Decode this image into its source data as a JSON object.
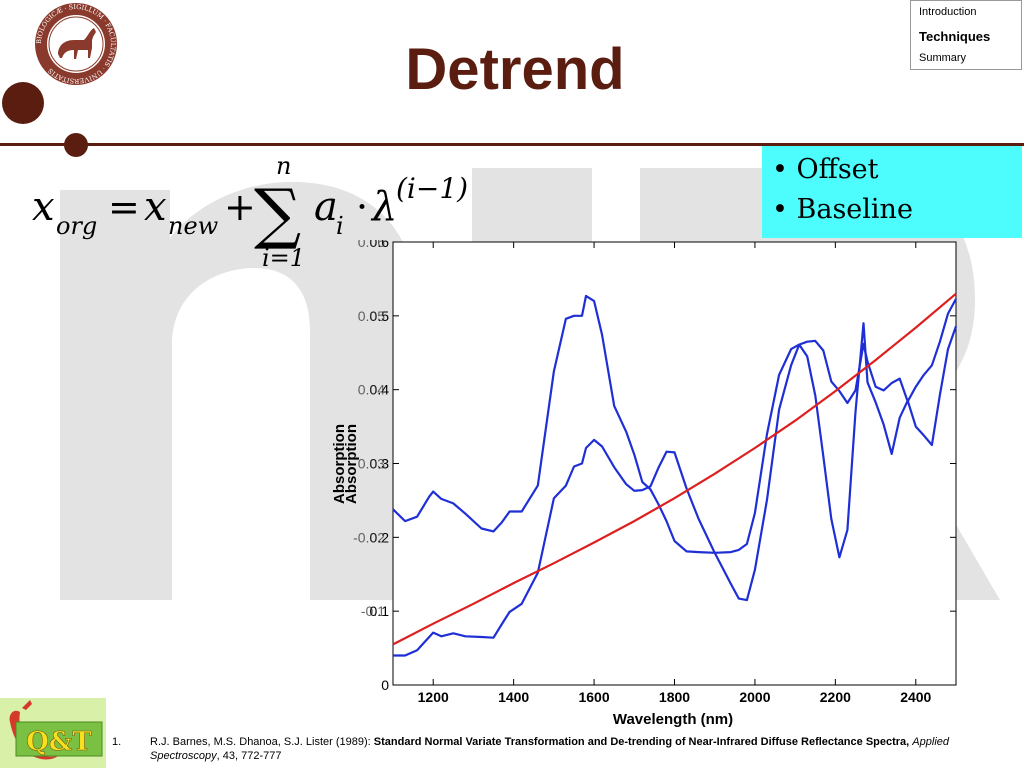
{
  "slide": {
    "title": "Detrend",
    "watermark": "nIR"
  },
  "seal": {
    "ring_text": "BIOLOGICÆ · SIGILLUM · FACULTATIS · UNIVERSITATIS"
  },
  "nav": {
    "items": [
      {
        "label": "Introduction",
        "active": false
      },
      {
        "label": "Techniques",
        "active": true
      },
      {
        "label": "Summary",
        "active": false
      }
    ]
  },
  "formula": {
    "lhs_var": "x",
    "lhs_sub": "org",
    "eq": "=",
    "rhs_var": "x",
    "rhs_sub": "new",
    "plus": "+",
    "sum_symbol": "∑",
    "sum_upper": "n",
    "sum_lower": "i=1",
    "coef": "a",
    "coef_sub": "i",
    "dot": "·",
    "lambda": "λ",
    "exponent": "(i−1)"
  },
  "bullets": {
    "items": [
      "• Offset",
      "• Baseline"
    ]
  },
  "chart_data": {
    "type": "line",
    "xlabel": "Wavelength (nm)",
    "ylabel": "Absorption",
    "xlim": [
      1100,
      2500
    ],
    "ylim": [
      0,
      0.6
    ],
    "xticks": [
      1200,
      1400,
      1600,
      1800,
      2000,
      2200,
      2400
    ],
    "yticks_main": [
      "0",
      "0.1",
      "0.2",
      "0.3",
      "0.4",
      "0.5",
      "0.6"
    ],
    "yticks_overlay": [
      "-0.1",
      "-0.02",
      "0.03",
      "0.04",
      "0.05",
      "0.06"
    ],
    "yticks_overlay_values": [
      -0.1,
      -0.02,
      0.03,
      0.04,
      0.05,
      0.06
    ],
    "series": [
      {
        "color": "#1f2fd6",
        "x": [
          1100,
          1130,
          1160,
          1190,
          1200,
          1220,
          1250,
          1280,
          1320,
          1350,
          1370,
          1390,
          1420,
          1460,
          1500,
          1530,
          1550,
          1570,
          1580,
          1600,
          1620,
          1650,
          1680,
          1700,
          1720,
          1740,
          1760,
          1780,
          1800,
          1830,
          1860,
          1900,
          1940,
          1960,
          1980,
          2000,
          2030,
          2060,
          2090,
          2110,
          2130,
          2150,
          2170,
          2190,
          2210,
          2230,
          2250,
          2270,
          2280,
          2300,
          2320,
          2340,
          2360,
          2380,
          2400,
          2420,
          2440,
          2460,
          2480,
          2500
        ],
        "y": [
          0.238,
          0.222,
          0.228,
          0.255,
          0.262,
          0.252,
          0.246,
          0.232,
          0.212,
          0.208,
          0.22,
          0.235,
          0.235,
          0.27,
          0.425,
          0.496,
          0.5,
          0.5,
          0.527,
          0.52,
          0.474,
          0.378,
          0.343,
          0.312,
          0.275,
          0.265,
          0.245,
          0.222,
          0.195,
          0.181,
          0.18,
          0.179,
          0.18,
          0.183,
          0.191,
          0.233,
          0.34,
          0.42,
          0.455,
          0.461,
          0.445,
          0.392,
          0.31,
          0.225,
          0.173,
          0.21,
          0.37,
          0.49,
          0.41,
          0.383,
          0.353,
          0.313,
          0.362,
          0.385,
          0.35,
          0.338,
          0.325,
          0.393,
          0.455,
          0.486
        ]
      },
      {
        "color": "#1f2fd6",
        "x": [
          1100,
          1130,
          1160,
          1190,
          1200,
          1220,
          1250,
          1280,
          1320,
          1350,
          1370,
          1390,
          1420,
          1460,
          1500,
          1530,
          1550,
          1570,
          1580,
          1600,
          1620,
          1650,
          1680,
          1700,
          1720,
          1740,
          1760,
          1780,
          1800,
          1830,
          1860,
          1900,
          1940,
          1960,
          1980,
          2000,
          2030,
          2060,
          2090,
          2110,
          2130,
          2150,
          2170,
          2190,
          2210,
          2230,
          2250,
          2270,
          2280,
          2300,
          2320,
          2340,
          2360,
          2380,
          2400,
          2420,
          2440,
          2460,
          2480,
          2500
        ],
        "y": [
          0.04,
          0.04,
          0.047,
          0.065,
          0.071,
          0.066,
          0.07,
          0.066,
          0.065,
          0.064,
          0.082,
          0.099,
          0.11,
          0.152,
          0.253,
          0.27,
          0.296,
          0.3,
          0.321,
          0.332,
          0.323,
          0.295,
          0.272,
          0.263,
          0.264,
          0.269,
          0.294,
          0.316,
          0.315,
          0.266,
          0.225,
          0.179,
          0.137,
          0.117,
          0.115,
          0.156,
          0.251,
          0.373,
          0.433,
          0.461,
          0.465,
          0.466,
          0.453,
          0.411,
          0.398,
          0.382,
          0.399,
          0.462,
          0.438,
          0.404,
          0.399,
          0.409,
          0.415,
          0.384,
          0.404,
          0.42,
          0.433,
          0.465,
          0.503,
          0.523
        ]
      },
      {
        "color": "#dd1f1f",
        "x": [
          1100,
          1200,
          1300,
          1400,
          1500,
          1600,
          1700,
          1800,
          1900,
          2000,
          2100,
          2200,
          2300,
          2400,
          2500
        ],
        "y": [
          0.055,
          0.083,
          0.11,
          0.138,
          0.165,
          0.193,
          0.222,
          0.253,
          0.286,
          0.321,
          0.358,
          0.398,
          0.44,
          0.484,
          0.53
        ]
      }
    ]
  },
  "logo": {
    "text": "Q&T"
  },
  "reference": {
    "number": "1.",
    "authors": "R.J. Barnes, M.S. Dhanoa, S.J. Lister (1989): ",
    "title": "Standard Normal Variate Transformation and De-trending of Near-Infrared Diffuse Reflectance Spectra,",
    "journal": "Applied Spectroscopy",
    "details": ", 43, 772-777"
  },
  "colors": {
    "brand": "#5a1d10",
    "bullet_bg": "#4dfcfc",
    "spectrum": "#1f2fd6",
    "trend": "#dd1f1f",
    "watermark": "#e2e2e2"
  }
}
